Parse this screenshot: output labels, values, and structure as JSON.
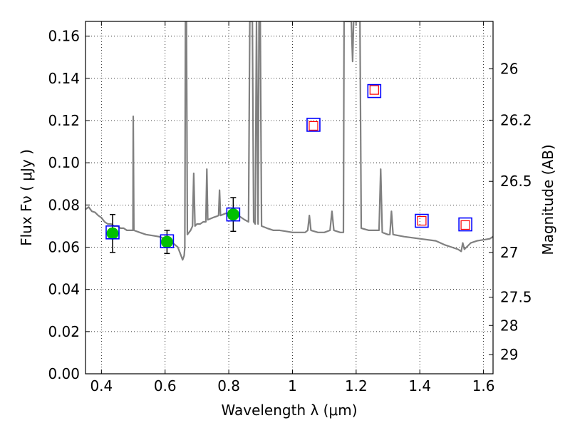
{
  "chart_data": {
    "type": "scatter",
    "xlabel": "Wavelength  λ (μm)",
    "ylabel": "Flux  Fν  ( μJy )",
    "y2label": "Magnitude (AB)",
    "xlim": [
      0.35,
      1.63
    ],
    "ylim": [
      0.0,
      0.167
    ],
    "x_ticks": [
      0.4,
      0.6,
      0.8,
      1.0,
      1.2,
      1.4,
      1.6
    ],
    "x_tick_labels": [
      "0.4",
      "0.6",
      "0.8",
      "1",
      "1.2",
      "1.4",
      "1.6"
    ],
    "y_ticks": [
      0.0,
      0.02,
      0.04,
      0.06,
      0.08,
      0.1,
      0.12,
      0.14,
      0.16
    ],
    "y_tick_labels": [
      "0.00",
      "0.02",
      "0.04",
      "0.06",
      "0.08",
      "0.10",
      "0.12",
      "0.14",
      "0.16"
    ],
    "y2_ticks": [
      {
        "label": "26",
        "flux": 0.1445
      },
      {
        "label": "26.2",
        "flux": 0.1202
      },
      {
        "label": "26.5",
        "flux": 0.0912
      },
      {
        "label": "27",
        "flux": 0.0575
      },
      {
        "label": "27.5",
        "flux": 0.0363
      },
      {
        "label": "28",
        "flux": 0.0229
      },
      {
        "label": "29",
        "flux": 0.0091
      }
    ],
    "grid": true,
    "series": [
      {
        "kind": "spectrum",
        "color": "#808080",
        "points": [
          [
            0.35,
            0.078
          ],
          [
            0.36,
            0.079
          ],
          [
            0.37,
            0.077
          ],
          [
            0.38,
            0.0765
          ],
          [
            0.39,
            0.075
          ],
          [
            0.4,
            0.074
          ],
          [
            0.41,
            0.072
          ],
          [
            0.42,
            0.071
          ],
          [
            0.43,
            0.071
          ],
          [
            0.44,
            0.07
          ],
          [
            0.45,
            0.07
          ],
          [
            0.46,
            0.069
          ],
          [
            0.47,
            0.069
          ],
          [
            0.48,
            0.068
          ],
          [
            0.495,
            0.068
          ],
          [
            0.499,
            0.068
          ],
          [
            0.5,
            0.122
          ],
          [
            0.502,
            0.068
          ],
          [
            0.52,
            0.067
          ],
          [
            0.54,
            0.066
          ],
          [
            0.56,
            0.0655
          ],
          [
            0.58,
            0.065
          ],
          [
            0.6,
            0.064
          ],
          [
            0.62,
            0.0625
          ],
          [
            0.64,
            0.06
          ],
          [
            0.65,
            0.056
          ],
          [
            0.655,
            0.054
          ],
          [
            0.66,
            0.056
          ],
          [
            0.662,
            0.06
          ],
          [
            0.664,
            0.167
          ],
          [
            0.667,
            0.167
          ],
          [
            0.67,
            0.066
          ],
          [
            0.68,
            0.068
          ],
          [
            0.686,
            0.07
          ],
          [
            0.69,
            0.095
          ],
          [
            0.694,
            0.07
          ],
          [
            0.7,
            0.071
          ],
          [
            0.71,
            0.071
          ],
          [
            0.72,
            0.072
          ],
          [
            0.728,
            0.072
          ],
          [
            0.731,
            0.097
          ],
          [
            0.734,
            0.073
          ],
          [
            0.75,
            0.074
          ],
          [
            0.76,
            0.0745
          ],
          [
            0.768,
            0.075
          ],
          [
            0.771,
            0.087
          ],
          [
            0.774,
            0.075
          ],
          [
            0.79,
            0.076
          ],
          [
            0.81,
            0.076
          ],
          [
            0.83,
            0.075
          ],
          [
            0.85,
            0.073
          ],
          [
            0.862,
            0.072
          ],
          [
            0.866,
            0.167
          ],
          [
            0.874,
            0.167
          ],
          [
            0.878,
            0.072
          ],
          [
            0.883,
            0.071
          ],
          [
            0.887,
            0.167
          ],
          [
            0.892,
            0.071
          ],
          [
            0.895,
            0.167
          ],
          [
            0.899,
            0.167
          ],
          [
            0.903,
            0.07
          ],
          [
            0.92,
            0.069
          ],
          [
            0.94,
            0.068
          ],
          [
            0.96,
            0.068
          ],
          [
            0.98,
            0.0675
          ],
          [
            1.0,
            0.067
          ],
          [
            1.02,
            0.067
          ],
          [
            1.04,
            0.067
          ],
          [
            1.048,
            0.068
          ],
          [
            1.053,
            0.075
          ],
          [
            1.058,
            0.068
          ],
          [
            1.08,
            0.067
          ],
          [
            1.1,
            0.067
          ],
          [
            1.118,
            0.068
          ],
          [
            1.124,
            0.077
          ],
          [
            1.13,
            0.068
          ],
          [
            1.15,
            0.067
          ],
          [
            1.16,
            0.067
          ],
          [
            1.162,
            0.167
          ],
          [
            1.185,
            0.167
          ],
          [
            1.189,
            0.148
          ],
          [
            1.192,
            0.167
          ],
          [
            1.212,
            0.167
          ],
          [
            1.216,
            0.069
          ],
          [
            1.24,
            0.068
          ],
          [
            1.26,
            0.068
          ],
          [
            1.272,
            0.068
          ],
          [
            1.277,
            0.097
          ],
          [
            1.282,
            0.067
          ],
          [
            1.3,
            0.066
          ],
          [
            1.306,
            0.066
          ],
          [
            1.311,
            0.077
          ],
          [
            1.316,
            0.066
          ],
          [
            1.35,
            0.065
          ],
          [
            1.4,
            0.064
          ],
          [
            1.45,
            0.063
          ],
          [
            1.48,
            0.061
          ],
          [
            1.5,
            0.06
          ],
          [
            1.52,
            0.059
          ],
          [
            1.53,
            0.058
          ],
          [
            1.535,
            0.062
          ],
          [
            1.54,
            0.059
          ],
          [
            1.56,
            0.062
          ],
          [
            1.58,
            0.063
          ],
          [
            1.6,
            0.0635
          ],
          [
            1.62,
            0.064
          ],
          [
            1.63,
            0.065
          ]
        ]
      },
      {
        "kind": "observed",
        "marker": "filled-circle",
        "color": "#00c000",
        "points": [
          {
            "x": 0.435,
            "y": 0.0665,
            "err": 0.009
          },
          {
            "x": 0.606,
            "y": 0.0625,
            "err": 0.0055
          },
          {
            "x": 0.814,
            "y": 0.0755,
            "err": 0.008
          }
        ]
      },
      {
        "kind": "model-blue",
        "marker": "open-square",
        "color": "#0000ff",
        "points": [
          {
            "x": 0.435,
            "y": 0.067
          },
          {
            "x": 0.606,
            "y": 0.0628
          },
          {
            "x": 0.814,
            "y": 0.0755
          },
          {
            "x": 1.066,
            "y": 0.118
          },
          {
            "x": 1.257,
            "y": 0.134
          },
          {
            "x": 1.406,
            "y": 0.0725
          },
          {
            "x": 1.543,
            "y": 0.0708
          }
        ]
      },
      {
        "kind": "model-red",
        "marker": "open-square",
        "color": "#ff0000",
        "points": [
          {
            "x": 1.066,
            "y": 0.1175
          },
          {
            "x": 1.257,
            "y": 0.1345
          },
          {
            "x": 1.406,
            "y": 0.0725
          },
          {
            "x": 1.543,
            "y": 0.0705
          }
        ]
      }
    ]
  }
}
